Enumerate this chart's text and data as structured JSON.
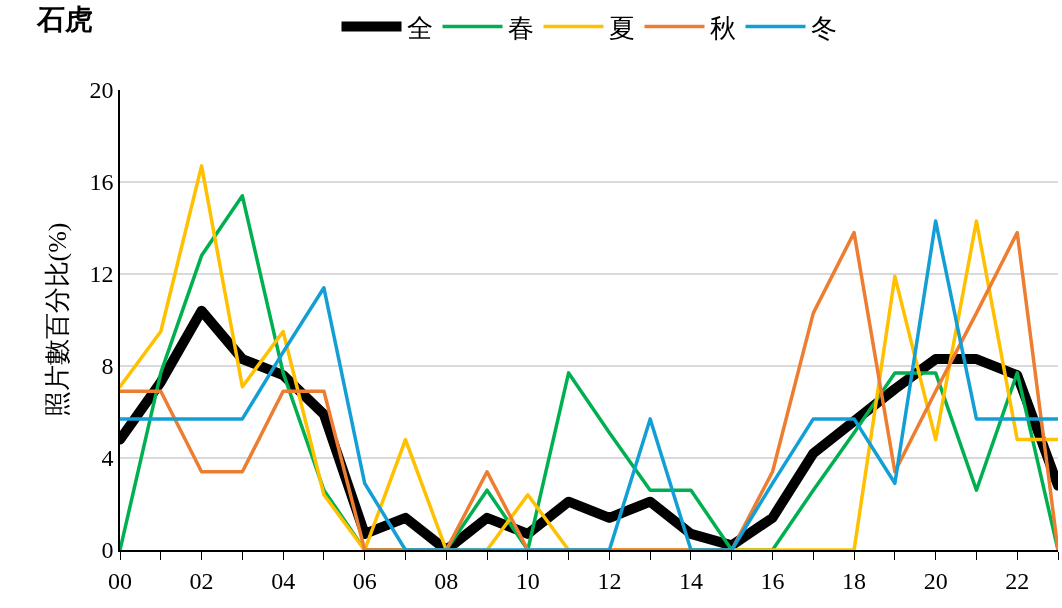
{
  "chart_data": {
    "type": "line",
    "title": "石虎",
    "ylabel": "照片數百分比(%)",
    "x": [
      0,
      1,
      2,
      3,
      4,
      5,
      6,
      7,
      8,
      9,
      10,
      11,
      12,
      13,
      14,
      15,
      16,
      17,
      18,
      19,
      20,
      21,
      22,
      23
    ],
    "xlim": [
      0,
      23
    ],
    "xticks": [
      {
        "value": 0,
        "label": "00"
      },
      {
        "value": 1,
        "label": null
      },
      {
        "value": 2,
        "label": "02"
      },
      {
        "value": 3,
        "label": null
      },
      {
        "value": 4,
        "label": "04"
      },
      {
        "value": 5,
        "label": null
      },
      {
        "value": 6,
        "label": "06"
      },
      {
        "value": 7,
        "label": null
      },
      {
        "value": 8,
        "label": "08"
      },
      {
        "value": 9,
        "label": null
      },
      {
        "value": 10,
        "label": "10"
      },
      {
        "value": 11,
        "label": null
      },
      {
        "value": 12,
        "label": "12"
      },
      {
        "value": 13,
        "label": null
      },
      {
        "value": 14,
        "label": "14"
      },
      {
        "value": 15,
        "label": null
      },
      {
        "value": 16,
        "label": "16"
      },
      {
        "value": 17,
        "label": null
      },
      {
        "value": 18,
        "label": "18"
      },
      {
        "value": 19,
        "label": null
      },
      {
        "value": 20,
        "label": "20"
      },
      {
        "value": 21,
        "label": null
      },
      {
        "value": 22,
        "label": "22"
      },
      {
        "value": 23,
        "label": null
      }
    ],
    "ylim": [
      0,
      20
    ],
    "yticks": [
      0,
      4,
      8,
      12,
      16,
      20
    ],
    "grid": "y",
    "legend": "top",
    "marker": "none",
    "line_style": "solid",
    "series": [
      {
        "name": "全",
        "color": "#000000",
        "values": [
          4.8,
          7.3,
          10.4,
          8.3,
          7.6,
          5.9,
          0.7,
          1.4,
          0,
          1.4,
          0.7,
          2.1,
          1.4,
          2.1,
          0.7,
          0.2,
          1.4,
          4.2,
          5.6,
          7.0,
          8.3,
          8.3,
          7.6,
          2.8
        ]
      },
      {
        "name": "春",
        "color": "#00b050",
        "values": [
          0,
          7.7,
          12.8,
          15.4,
          7.7,
          2.6,
          0,
          0,
          0,
          2.6,
          0,
          7.7,
          5.1,
          2.6,
          2.6,
          0,
          0,
          2.6,
          5.1,
          7.7,
          7.7,
          2.6,
          7.7,
          0
        ]
      },
      {
        "name": "夏",
        "color": "#ffc000",
        "values": [
          7.1,
          9.5,
          16.7,
          7.1,
          9.5,
          2.4,
          0,
          4.8,
          0,
          0,
          2.4,
          0,
          0,
          0,
          0,
          0,
          0,
          0,
          0,
          11.9,
          4.8,
          14.3,
          4.8,
          4.8
        ]
      },
      {
        "name": "秋",
        "color": "#ed7d31",
        "values": [
          6.9,
          6.9,
          3.4,
          3.4,
          6.9,
          6.9,
          0,
          0,
          0,
          3.4,
          0,
          0,
          0,
          0,
          0,
          0,
          3.4,
          10.3,
          13.8,
          3.4,
          6.9,
          10.3,
          13.8,
          0
        ]
      },
      {
        "name": "冬",
        "color": "#139fd6",
        "values": [
          5.7,
          5.7,
          5.7,
          5.7,
          8.6,
          11.4,
          2.9,
          0,
          0,
          0,
          0,
          0,
          0,
          5.7,
          0,
          0,
          2.9,
          5.7,
          5.7,
          2.9,
          14.3,
          5.7,
          5.7,
          5.7
        ]
      }
    ]
  }
}
